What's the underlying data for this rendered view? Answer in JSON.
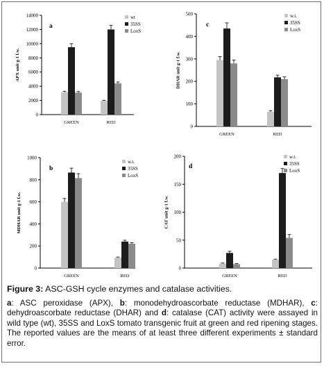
{
  "chart_data": [
    {
      "type": "bar",
      "panel_letter": "a",
      "ylabel": "APX unit g-1 f.w.",
      "ylim": [
        0,
        14000
      ],
      "yticks": [
        0,
        2000,
        4000,
        6000,
        8000,
        10000,
        12000,
        14000
      ],
      "categories": [
        "GREEN",
        "RED"
      ],
      "legend": "top-right",
      "series": [
        {
          "name": "wt",
          "values": [
            3150,
            1950
          ],
          "errors": [
            150,
            80
          ]
        },
        {
          "name": "35SS",
          "values": [
            9500,
            12000
          ],
          "errors": [
            500,
            600
          ]
        },
        {
          "name": "LoxS",
          "values": [
            3100,
            4400
          ],
          "errors": [
            150,
            200
          ]
        }
      ]
    },
    {
      "type": "bar",
      "panel_letter": "c",
      "ylabel": "DHAR unit g-1 f.w.",
      "ylim": [
        0,
        500
      ],
      "yticks": [
        0,
        100,
        200,
        300,
        400,
        500
      ],
      "categories": [
        "GREEN",
        "RED"
      ],
      "legend": "top-right",
      "series": [
        {
          "name": "w.t.",
          "values": [
            295,
            65
          ],
          "errors": [
            15,
            5
          ]
        },
        {
          "name": "35SS",
          "values": [
            435,
            218
          ],
          "errors": [
            25,
            10
          ]
        },
        {
          "name": "LoxS",
          "values": [
            280,
            210
          ],
          "errors": [
            15,
            10
          ]
        }
      ]
    },
    {
      "type": "bar",
      "panel_letter": "b",
      "ylabel": "MDHAR unit g-1 f.w.",
      "ylim": [
        0,
        1000
      ],
      "yticks": [
        0,
        200,
        400,
        600,
        800,
        1000
      ],
      "categories": [
        "GREEN",
        "RED"
      ],
      "legend": "top-right",
      "series": [
        {
          "name": "w.t.",
          "values": [
            600,
            95
          ],
          "errors": [
            30,
            5
          ]
        },
        {
          "name": "35SS",
          "values": [
            865,
            240
          ],
          "errors": [
            40,
            12
          ]
        },
        {
          "name": "LoxS",
          "values": [
            815,
            220
          ],
          "errors": [
            40,
            10
          ]
        }
      ]
    },
    {
      "type": "bar",
      "panel_letter": "d",
      "ylabel": "CAT unit g-1 f.w.",
      "ylim": [
        0,
        200
      ],
      "yticks": [
        0,
        50,
        100,
        150,
        200
      ],
      "categories": [
        "GREEN",
        "RED"
      ],
      "legend": "top-right",
      "series": [
        {
          "name": "w.t.",
          "values": [
            8,
            15
          ],
          "errors": [
            1,
            1
          ]
        },
        {
          "name": "35SS",
          "values": [
            27,
            170
          ],
          "errors": [
            3,
            8
          ]
        },
        {
          "name": "LoxS",
          "values": [
            7,
            54
          ],
          "errors": [
            1,
            6
          ]
        }
      ]
    }
  ],
  "colors": {
    "wt": "#c4c4c4",
    "35SS": "#1c1c1c",
    "LoxS": "#8b8b8b",
    "axis": "#000000",
    "frame": "#6f6f6f"
  },
  "caption": {
    "title_bold": "Figure 3:",
    "title_rest": " ASC-GSH cycle enzymes and catalase activities.",
    "body": [
      {
        "bold": "a",
        "text": ": ASC peroxidase (APX), "
      },
      {
        "bold": "b",
        "text": ": monodehydroascorbate reductase (MDHAR), "
      },
      {
        "bold": "c",
        "text": ": dehydroascorbate reductase (DHAR) and "
      },
      {
        "bold": "d",
        "text": ": catalase (CAT) activity were assayed in wild type (wt), 35SS and LoxS tomato transgenic fruit at green and red ripening stages. The reported values are the means of at least three different experiments ± standard error."
      }
    ]
  }
}
